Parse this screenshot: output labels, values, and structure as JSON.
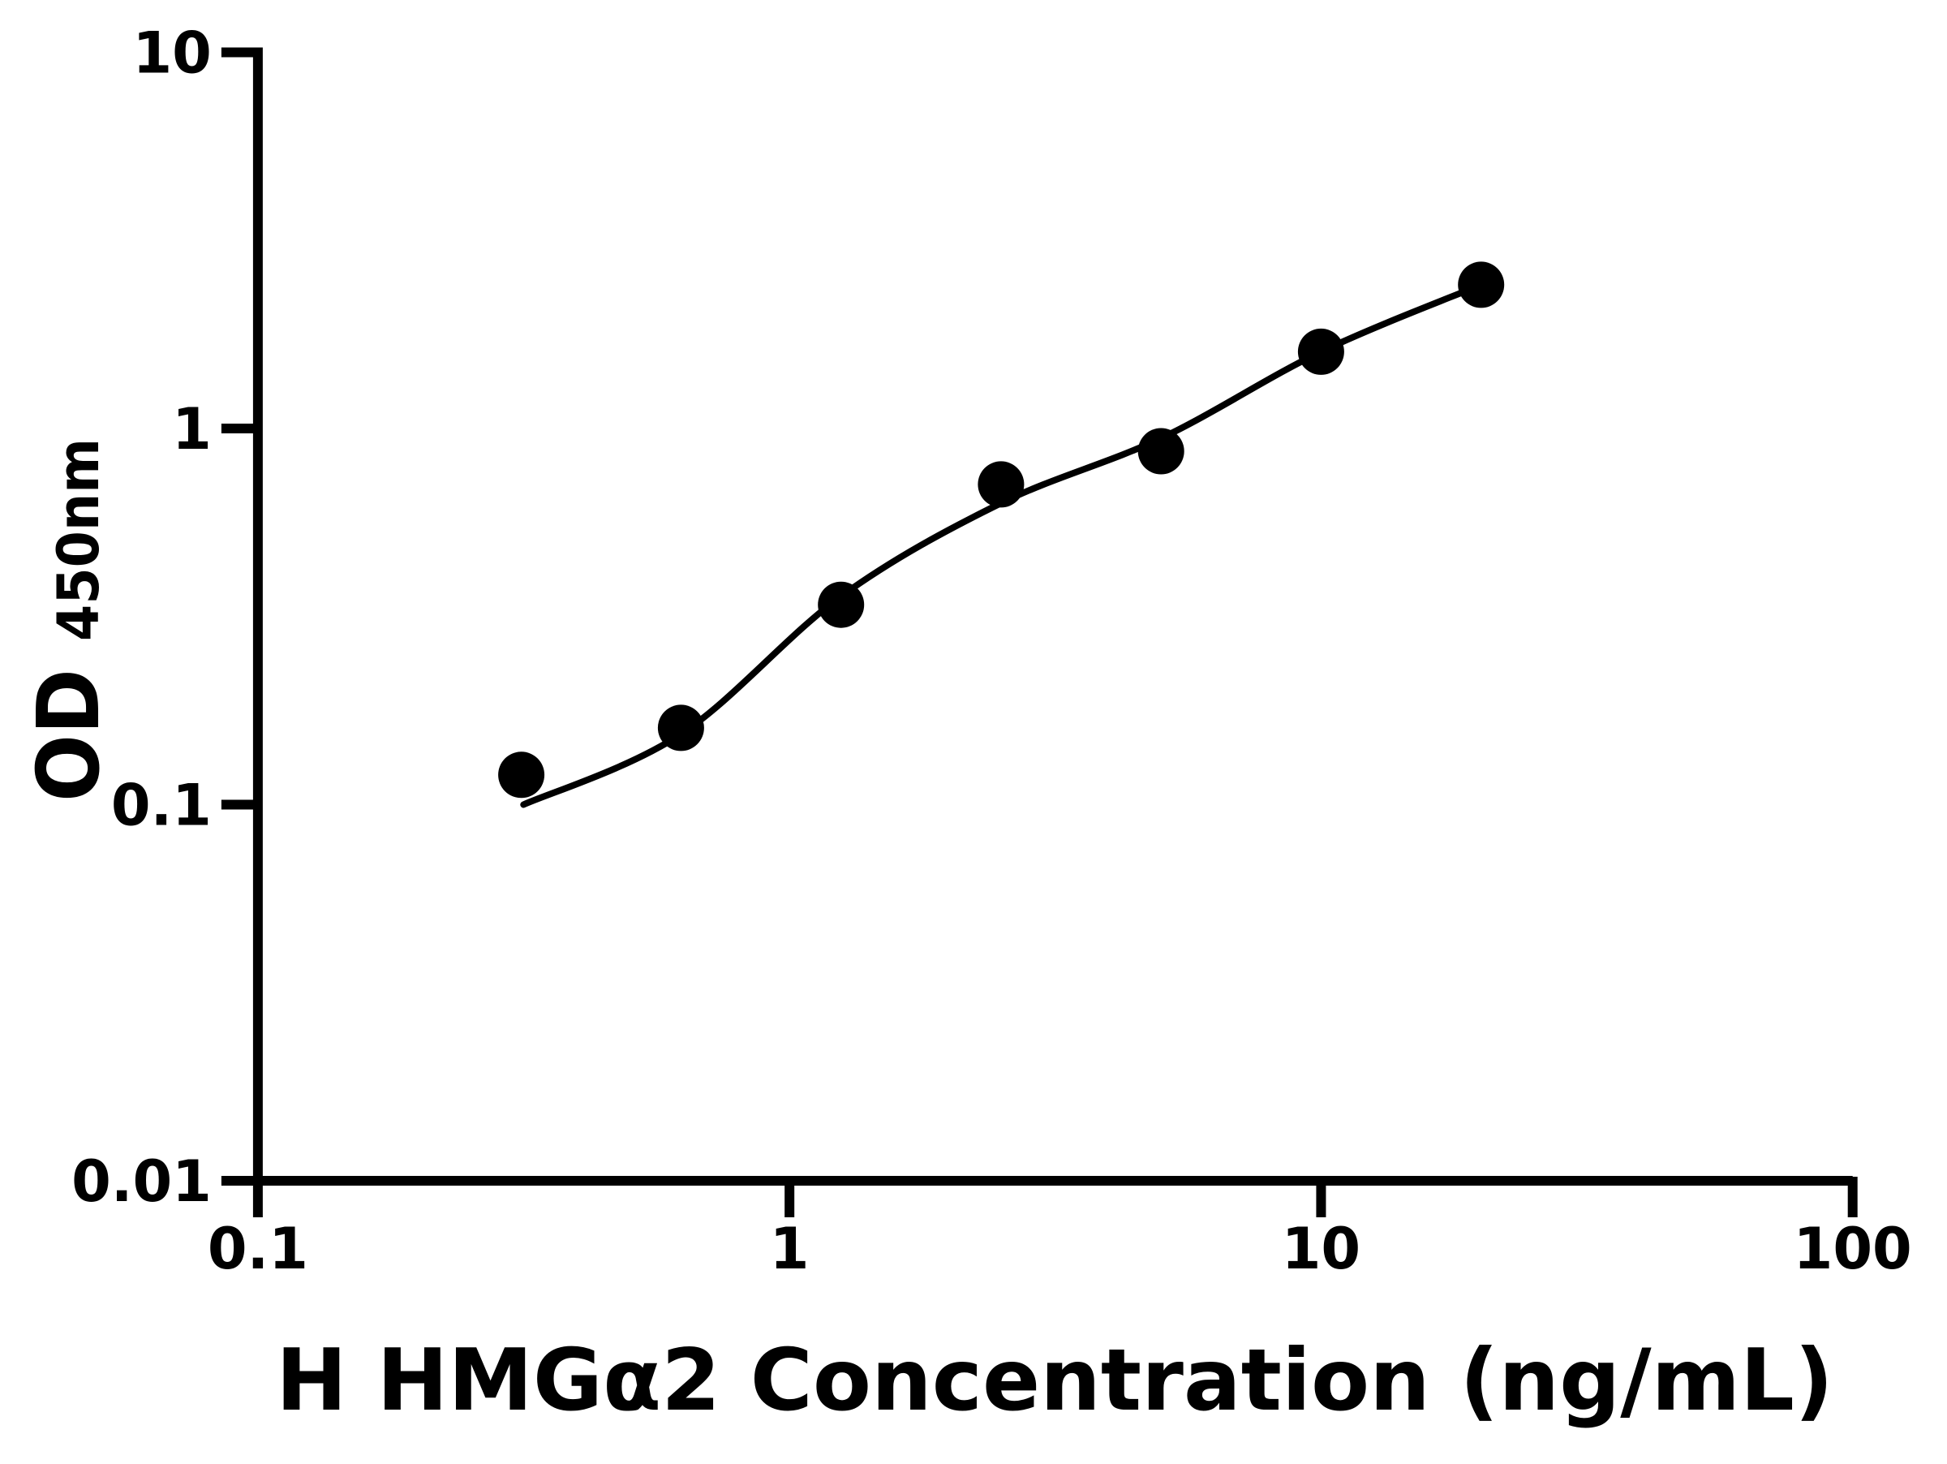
{
  "chart_data": {
    "type": "scatter",
    "title": "",
    "xlabel": "H HMGα2 Concentration (ng/mL)",
    "ylabel_main": "OD",
    "ylabel_sub": "450nm",
    "x_scale": "log",
    "y_scale": "log",
    "xlim": [
      0.1,
      100
    ],
    "ylim": [
      0.01,
      10
    ],
    "x_ticks": [
      0.1,
      1,
      10,
      100
    ],
    "x_tick_labels": [
      "0.1",
      "1",
      "10",
      "100"
    ],
    "y_ticks": [
      10,
      1,
      0.1,
      0.01
    ],
    "y_tick_labels": [
      "10",
      "1",
      "0.1",
      "0.01"
    ],
    "grid": false,
    "legend": false,
    "series": [
      {
        "name": "standard-points",
        "marker": "circle",
        "x": [
          0.313,
          0.625,
          1.25,
          2.5,
          5,
          10,
          20
        ],
        "y": [
          0.12,
          0.16,
          0.34,
          0.71,
          0.87,
          1.6,
          2.41
        ]
      }
    ],
    "fit_curve": {
      "name": "fitted-standard-curve",
      "x": [
        0.316,
        0.625,
        1.25,
        2.5,
        5,
        10,
        20
      ],
      "y": [
        0.1,
        0.154,
        0.358,
        0.633,
        0.942,
        1.6,
        2.41
      ]
    },
    "colors": {
      "foreground": "#000000",
      "background": "#ffffff"
    }
  }
}
